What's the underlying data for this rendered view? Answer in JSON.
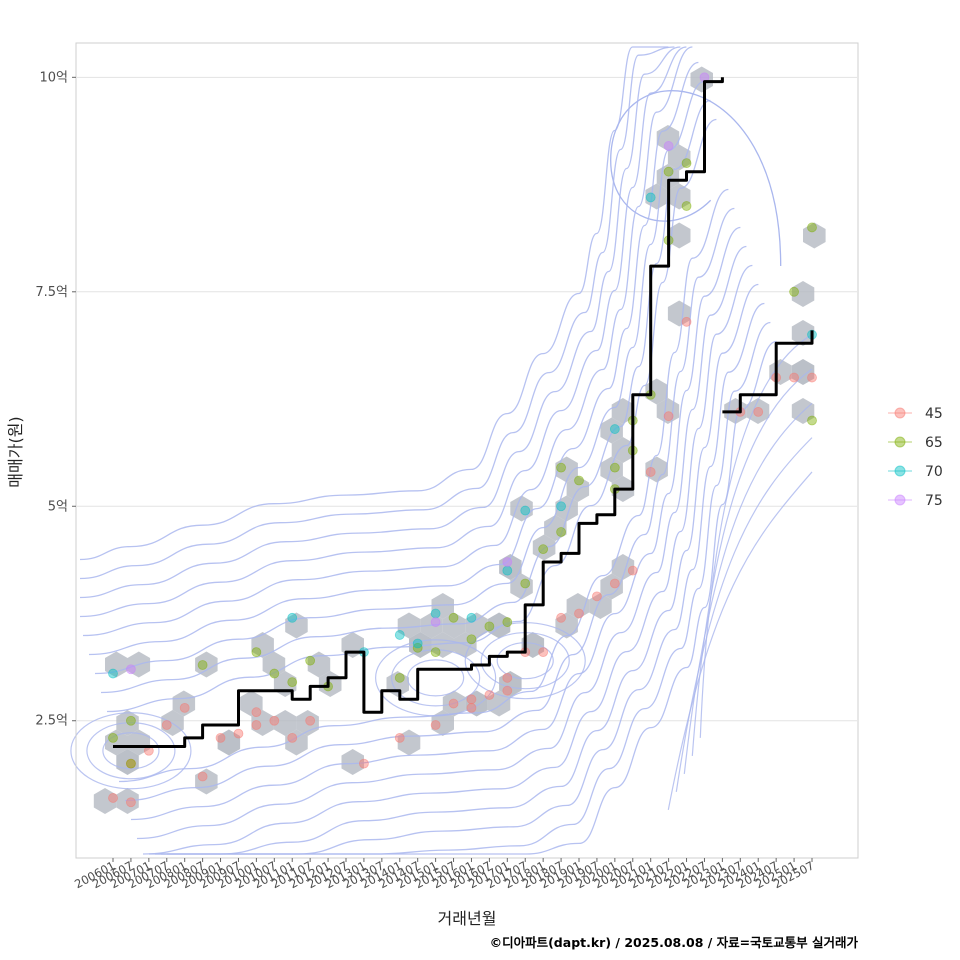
{
  "chart_data": {
    "type": "scatter",
    "xlabel": "거래년월",
    "ylabel": "매매가(원)",
    "caption": "©디아파트(dapt.kr) / 2025.08.08 / 자료=국토교통부 실거래가",
    "x_tick_labels": [
      "200601",
      "200607",
      "200701",
      "200707",
      "200801",
      "200807",
      "200901",
      "200907",
      "201001",
      "201007",
      "201101",
      "201107",
      "201201",
      "201207",
      "201301",
      "201307",
      "201401",
      "201407",
      "201501",
      "201507",
      "201601",
      "201607",
      "201701",
      "201707",
      "201801",
      "201807",
      "201901",
      "201907",
      "202001",
      "202007",
      "202101",
      "202107",
      "202201",
      "202207",
      "202301",
      "202307",
      "202401",
      "202407",
      "202501",
      "202507"
    ],
    "y_ticks": [
      {
        "value": 2.5,
        "label": "2.5억"
      },
      {
        "value": 5,
        "label": "5억"
      },
      {
        "value": 7.5,
        "label": "7.5억"
      },
      {
        "value": 10,
        "label": "10억"
      }
    ],
    "y_unit": "억원",
    "ylim": [
      0.9,
      10.4
    ],
    "grid": true,
    "legend": {
      "position": "right",
      "entries": [
        {
          "label": "45",
          "color": "#F8766D"
        },
        {
          "label": "65",
          "color": "#7CAE00"
        },
        {
          "label": "70",
          "color": "#00BFC4"
        },
        {
          "label": "75",
          "color": "#C77CFF"
        }
      ]
    },
    "colors": {
      "trend": "#000000",
      "hexbin": "#b4b9c2",
      "contour": "#aab7ee",
      "grid": "#e3e3e3"
    },
    "trend_line": {
      "name": "",
      "segments": [
        [
          [
            "200601",
            2.2
          ],
          [
            "200701",
            2.2
          ],
          [
            "200801",
            2.3
          ],
          [
            "200807",
            2.45
          ],
          [
            "200901",
            2.45
          ],
          [
            "200907",
            2.85
          ],
          [
            "201001",
            2.85
          ],
          [
            "201007",
            2.85
          ],
          [
            "201101",
            2.75
          ],
          [
            "201107",
            2.9
          ],
          [
            "201201",
            3.0
          ],
          [
            "201207",
            3.3
          ],
          [
            "201301",
            2.6
          ],
          [
            "201307",
            2.85
          ],
          [
            "201401",
            2.75
          ],
          [
            "201407",
            3.1
          ],
          [
            "201501",
            3.1
          ],
          [
            "201507",
            3.1
          ],
          [
            "201601",
            3.15
          ],
          [
            "201607",
            3.25
          ],
          [
            "201701",
            3.3
          ],
          [
            "201707",
            3.85
          ],
          [
            "201801",
            4.35
          ],
          [
            "201807",
            4.45
          ],
          [
            "201901",
            4.8
          ],
          [
            "201907",
            4.9
          ],
          [
            "202001",
            5.2
          ],
          [
            "202007",
            6.3
          ],
          [
            "202101",
            7.8
          ],
          [
            "202107",
            8.8
          ],
          [
            "202201",
            8.9
          ],
          [
            "202207",
            9.95
          ],
          [
            "202301",
            10.0
          ]
        ],
        [
          [
            "202301",
            6.1
          ],
          [
            "202307",
            6.3
          ],
          [
            "202401",
            6.3
          ],
          [
            "202407",
            6.9
          ],
          [
            "202501",
            6.9
          ],
          [
            "202507",
            7.05
          ]
        ]
      ]
    },
    "series": [
      {
        "name": "45",
        "points": [
          [
            "200601",
            1.6
          ],
          [
            "200607",
            1.55
          ],
          [
            "200607",
            2.0
          ],
          [
            "200701",
            2.15
          ],
          [
            "200707",
            2.45
          ],
          [
            "200801",
            2.65
          ],
          [
            "200807",
            1.85
          ],
          [
            "200901",
            2.3
          ],
          [
            "200907",
            2.35
          ],
          [
            "201001",
            2.6
          ],
          [
            "201001",
            2.45
          ],
          [
            "201007",
            2.5
          ],
          [
            "201101",
            2.3
          ],
          [
            "201107",
            2.5
          ],
          [
            "201301",
            2.0
          ],
          [
            "201401",
            2.3
          ],
          [
            "201501",
            2.45
          ],
          [
            "201507",
            2.7
          ],
          [
            "201601",
            2.75
          ],
          [
            "201601",
            2.65
          ],
          [
            "201607",
            2.8
          ],
          [
            "201701",
            3.0
          ],
          [
            "201701",
            2.85
          ],
          [
            "201707",
            3.3
          ],
          [
            "201801",
            3.3
          ],
          [
            "201807",
            3.7
          ],
          [
            "201901",
            3.75
          ],
          [
            "201907",
            3.95
          ],
          [
            "202001",
            4.1
          ],
          [
            "202007",
            4.25
          ],
          [
            "202101",
            5.4
          ],
          [
            "202107",
            6.05
          ],
          [
            "202201",
            7.15
          ],
          [
            "202307",
            6.1
          ],
          [
            "202401",
            6.1
          ],
          [
            "202407",
            6.5
          ],
          [
            "202501",
            6.5
          ],
          [
            "202507",
            6.5
          ]
        ]
      },
      {
        "name": "65",
        "points": [
          [
            "200601",
            2.3
          ],
          [
            "200607",
            2.5
          ],
          [
            "200607",
            2.0
          ],
          [
            "200807",
            3.15
          ],
          [
            "201001",
            3.3
          ],
          [
            "201007",
            3.05
          ],
          [
            "201101",
            2.95
          ],
          [
            "201107",
            3.2
          ],
          [
            "201201",
            2.9
          ],
          [
            "201401",
            3.0
          ],
          [
            "201407",
            3.35
          ],
          [
            "201501",
            3.3
          ],
          [
            "201507",
            3.7
          ],
          [
            "201601",
            3.45
          ],
          [
            "201607",
            3.6
          ],
          [
            "201701",
            3.65
          ],
          [
            "201707",
            4.1
          ],
          [
            "201801",
            4.5
          ],
          [
            "201807",
            4.7
          ],
          [
            "201807",
            5.45
          ],
          [
            "201901",
            5.3
          ],
          [
            "202001",
            5.2
          ],
          [
            "202001",
            5.45
          ],
          [
            "202007",
            5.65
          ],
          [
            "202007",
            6.0
          ],
          [
            "202101",
            6.3
          ],
          [
            "202107",
            8.1
          ],
          [
            "202107",
            8.9
          ],
          [
            "202201",
            9.0
          ],
          [
            "202201",
            8.5
          ],
          [
            "202501",
            7.5
          ],
          [
            "202507",
            8.25
          ],
          [
            "202507",
            6.0
          ]
        ]
      },
      {
        "name": "70",
        "points": [
          [
            "200601",
            3.05
          ],
          [
            "201101",
            3.7
          ],
          [
            "201301",
            3.3
          ],
          [
            "201401",
            3.5
          ],
          [
            "201407",
            3.4
          ],
          [
            "201501",
            3.75
          ],
          [
            "201601",
            3.7
          ],
          [
            "201701",
            4.25
          ],
          [
            "201707",
            4.95
          ],
          [
            "201807",
            5.0
          ],
          [
            "202001",
            5.9
          ],
          [
            "202101",
            8.6
          ],
          [
            "202507",
            7.0
          ]
        ]
      },
      {
        "name": "75",
        "points": [
          [
            "200607",
            3.1
          ],
          [
            "201501",
            3.65
          ],
          [
            "201701",
            4.35
          ],
          [
            "202107",
            9.2
          ],
          [
            "202207",
            10.0
          ]
        ]
      }
    ]
  }
}
